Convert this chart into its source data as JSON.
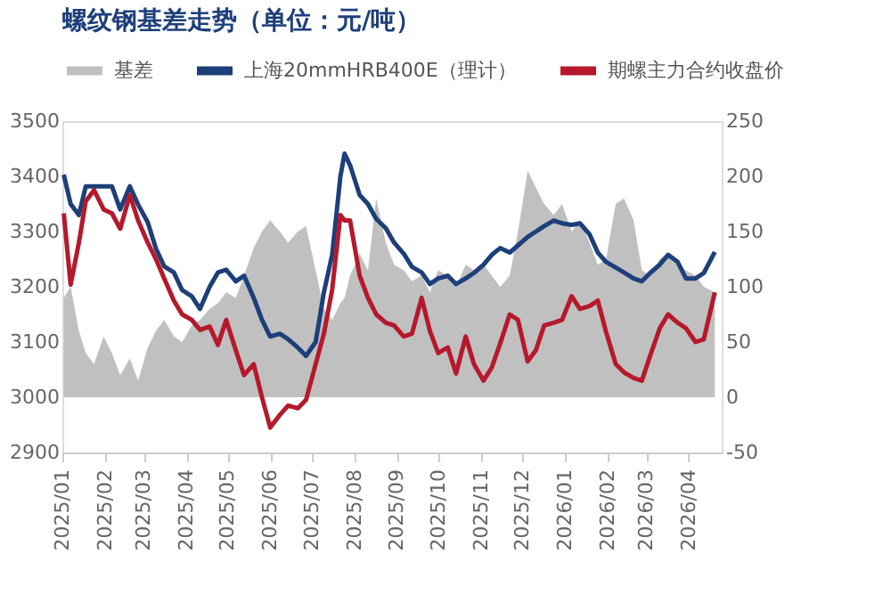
{
  "chart_data": {
    "type": "line",
    "title": "螺纹钢基差走势（单位：元/吨）",
    "x": [
      "2025-01-02",
      "2025-01-07",
      "2025-01-13",
      "2025-01-18",
      "2025-01-24",
      "2025-01-31",
      "2025-02-06",
      "2025-02-12",
      "2025-02-19",
      "2025-02-25",
      "2025-03-04",
      "2025-03-10",
      "2025-03-16",
      "2025-03-23",
      "2025-03-29",
      "2025-04-05",
      "2025-04-11",
      "2025-04-18",
      "2025-04-24",
      "2025-04-30",
      "2025-05-07",
      "2025-05-13",
      "2025-05-20",
      "2025-05-26",
      "2025-06-01",
      "2025-06-08",
      "2025-06-14",
      "2025-06-21",
      "2025-06-27",
      "2025-07-04",
      "2025-07-10",
      "2025-07-16",
      "2025-07-22",
      "2025-07-25",
      "2025-07-29",
      "2025-08-05",
      "2025-08-11",
      "2025-08-17",
      "2025-08-24",
      "2025-08-30",
      "2025-09-06",
      "2025-09-12",
      "2025-09-19",
      "2025-09-25",
      "2025-10-01",
      "2025-10-08",
      "2025-10-14",
      "2025-10-21",
      "2025-10-27",
      "2025-11-03",
      "2025-11-09",
      "2025-11-15",
      "2025-11-22",
      "2025-11-28",
      "2025-12-05",
      "2025-12-11",
      "2025-12-17",
      "2025-12-24",
      "2025-12-30",
      "2026-01-06",
      "2026-01-12",
      "2026-01-19",
      "2026-01-25",
      "2026-01-31",
      "2026-02-07",
      "2026-02-13",
      "2026-02-20",
      "2026-02-26",
      "2026-03-04",
      "2026-03-11",
      "2026-03-17",
      "2026-03-24",
      "2026-03-30",
      "2026-04-06",
      "2026-04-12",
      "2026-04-20"
    ],
    "series": [
      {
        "name": "基差",
        "type": "area",
        "axis": "y2",
        "color": "#c0c0c0",
        "values": [
          90,
          100,
          60,
          40,
          30,
          55,
          40,
          20,
          35,
          15,
          45,
          60,
          70,
          55,
          50,
          65,
          70,
          80,
          85,
          95,
          90,
          110,
          135,
          150,
          160,
          150,
          140,
          150,
          155,
          115,
          80,
          70,
          85,
          90,
          110,
          130,
          115,
          180,
          140,
          120,
          115,
          105,
          110,
          95,
          115,
          110,
          100,
          120,
          115,
          120,
          110,
          100,
          110,
          150,
          205,
          190,
          175,
          165,
          175,
          150,
          160,
          140,
          120,
          125,
          175,
          180,
          160,
          115,
          110,
          125,
          130,
          120,
          115,
          110,
          100,
          95
        ]
      },
      {
        "name": "上海20mmHRB400E（理计）",
        "color": "#1d3f7a",
        "values": [
          3403,
          3350,
          3330,
          3382,
          3382,
          3382,
          3382,
          3340,
          3382,
          3349,
          3317,
          3269,
          3237,
          3226,
          3194,
          3183,
          3160,
          3200,
          3226,
          3231,
          3210,
          3220,
          3180,
          3140,
          3110,
          3115,
          3105,
          3090,
          3075,
          3100,
          3190,
          3258,
          3400,
          3441,
          3420,
          3366,
          3350,
          3323,
          3306,
          3280,
          3260,
          3236,
          3226,
          3205,
          3215,
          3220,
          3205,
          3215,
          3225,
          3240,
          3258,
          3270,
          3262,
          3275,
          3290,
          3300,
          3310,
          3320,
          3315,
          3312,
          3315,
          3295,
          3262,
          3245,
          3235,
          3226,
          3215,
          3210,
          3225,
          3240,
          3258,
          3245,
          3215,
          3215,
          3225,
          3263
        ]
      },
      {
        "name": "期螺主力合约收盘价",
        "color": "#b5192b",
        "values": [
          3333,
          3204,
          3280,
          3355,
          3375,
          3340,
          3333,
          3305,
          3366,
          3320,
          3280,
          3250,
          3215,
          3175,
          3150,
          3140,
          3122,
          3128,
          3095,
          3140,
          3085,
          3040,
          3060,
          3000,
          2945,
          2968,
          2985,
          2980,
          2995,
          3060,
          3115,
          3195,
          3330,
          3320,
          3320,
          3220,
          3180,
          3150,
          3135,
          3130,
          3110,
          3115,
          3180,
          3120,
          3080,
          3090,
          3043,
          3110,
          3060,
          3030,
          3054,
          3097,
          3150,
          3140,
          3065,
          3085,
          3130,
          3135,
          3140,
          3183,
          3160,
          3165,
          3175,
          3118,
          3060,
          3045,
          3035,
          3030,
          3075,
          3125,
          3150,
          3135,
          3125,
          3100,
          3105,
          3190
        ]
      }
    ],
    "xlim": [
      "2025-01-01",
      "2026-04-25"
    ],
    "xticks": [
      {
        "value": "2025-01",
        "label": "2025/01"
      },
      {
        "value": "2025-02",
        "label": "2025/02"
      },
      {
        "value": "2025-03",
        "label": "2025/03"
      },
      {
        "value": "2025-04",
        "label": "2025/04"
      },
      {
        "value": "2025-05",
        "label": "2025/05"
      },
      {
        "value": "2025-06",
        "label": "2025/06"
      },
      {
        "value": "2025-07",
        "label": "2025/07"
      },
      {
        "value": "2025-08",
        "label": "2025/08"
      },
      {
        "value": "2025-09",
        "label": "2025/09"
      },
      {
        "value": "2025-10",
        "label": "2025/10"
      },
      {
        "value": "2025-11",
        "label": "2025/11"
      },
      {
        "value": "2025-12",
        "label": "2025/12"
      },
      {
        "value": "2026-01",
        "label": "2026/01"
      },
      {
        "value": "2026-02",
        "label": "2026/02"
      },
      {
        "value": "2026-03",
        "label": "2026/03"
      },
      {
        "value": "2026-04",
        "label": "2026/04"
      }
    ],
    "ylim": [
      2900,
      3500
    ],
    "yticks": [
      2900,
      3000,
      3100,
      3200,
      3300,
      3400,
      3500
    ],
    "y2lim": [
      -50,
      250
    ],
    "y2ticks": [
      -50,
      0,
      50,
      100,
      150,
      200,
      250
    ],
    "grid": false,
    "legend": "top",
    "marker": "none",
    "line_style": "solid"
  }
}
